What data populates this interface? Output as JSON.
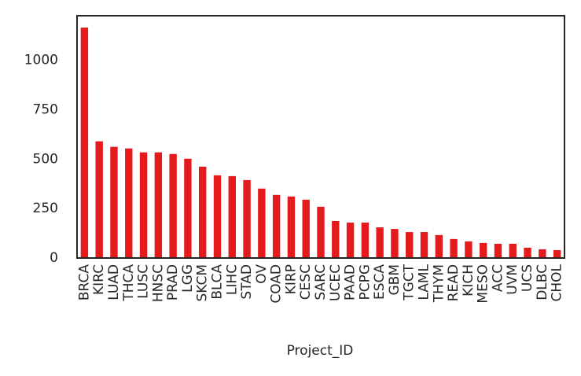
{
  "chart_data": {
    "type": "bar",
    "xlabel": "Project_ID",
    "categories": [
      "BRCA",
      "KIRC",
      "LUAD",
      "THCA",
      "LUSC",
      "HNSC",
      "PRAD",
      "LGG",
      "SKCM",
      "BLCA",
      "LIHC",
      "STAD",
      "OV",
      "COAD",
      "KIRP",
      "CESC",
      "SARC",
      "UCEC",
      "PAAD",
      "PCPG",
      "ESCA",
      "GBM",
      "TGCT",
      "LAML",
      "THYM",
      "READ",
      "KICH",
      "MESO",
      "ACC",
      "UVM",
      "UCS",
      "DLBC",
      "CHOL"
    ],
    "values": [
      1165,
      590,
      562,
      554,
      534,
      534,
      526,
      502,
      462,
      418,
      414,
      394,
      351,
      319,
      311,
      295,
      259,
      187,
      179,
      179,
      155,
      147,
      131,
      131,
      116,
      96,
      84,
      76,
      72,
      72,
      52,
      44,
      40
    ],
    "color": "#e41a1c",
    "ylim": [
      0,
      1225
    ],
    "yticks": [
      0,
      250,
      500,
      750,
      1000
    ]
  }
}
